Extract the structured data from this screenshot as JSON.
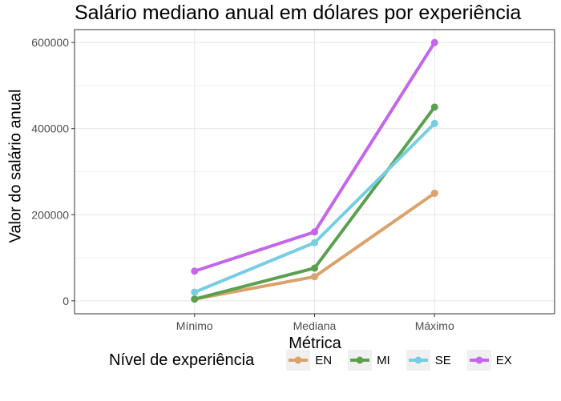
{
  "chart_data": {
    "type": "line",
    "title": "Salário mediano anual em dólares por experiência",
    "xlabel": "Métrica",
    "ylabel": "Valor do salário anual",
    "categories": [
      "Mínimo",
      "Mediana",
      "Máximo"
    ],
    "ylim": [
      -30000,
      630000
    ],
    "yticks": [
      0,
      200000,
      400000,
      600000
    ],
    "grid": true,
    "legend_position": "bottom",
    "legend_title": "Nível de experiência",
    "series": [
      {
        "name": "EN",
        "color": "#dba26c",
        "values": [
          4000,
          56000,
          250000
        ]
      },
      {
        "name": "MI",
        "color": "#5aa04f",
        "values": [
          4000,
          76000,
          450000
        ]
      },
      {
        "name": "SE",
        "color": "#77cde3",
        "values": [
          20000,
          135000,
          412000
        ]
      },
      {
        "name": "EX",
        "color": "#c466ea",
        "values": [
          69000,
          160000,
          600000
        ]
      }
    ]
  }
}
